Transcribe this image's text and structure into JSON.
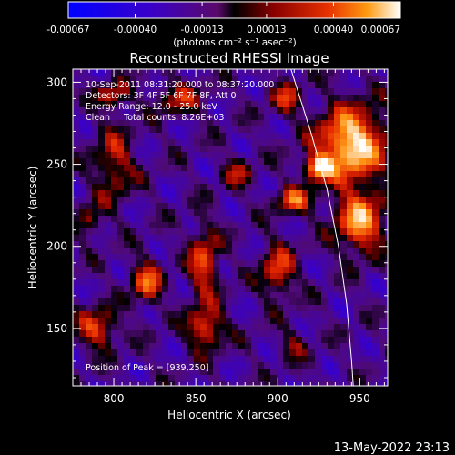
{
  "chart_data": {
    "type": "heatmap",
    "title": "Reconstructed RHESSI Image",
    "xlabel": "Heliocentric X (arcsec)",
    "ylabel": "Heliocentric Y (arcsec)",
    "xlim": [
      775,
      967
    ],
    "ylim": [
      115,
      308
    ],
    "x_ticks": [
      800,
      850,
      900,
      950
    ],
    "y_ticks": [
      150,
      200,
      250,
      300
    ],
    "colorbar": {
      "unit_label": "(photons cm⁻² s⁻¹ asec⁻²)",
      "range": [
        -0.00067,
        0.00067
      ],
      "tick_values": [
        -0.00067,
        -0.0004,
        -0.00013,
        0.00013,
        0.0004,
        0.00067
      ],
      "tick_labels": [
        "-0.00067",
        "-0.00040",
        "-0.00013",
        "0.00013",
        "0.00040",
        "0.00067"
      ]
    },
    "annotations": [
      "10-Sep-2011 08:31:20.000 to 08:37:20.000",
      "Detectors: 3F 4F 5F 6F 7F 8F, Att 0",
      "Energy Range: 12.0 - 25.0 keV",
      "Clean     Total counts: 8.26E+03"
    ],
    "peak_label": "Position of Peak = [939,250]",
    "peak": {
      "x": 939,
      "y": 250
    },
    "limb_curve": [
      [
        908,
        308
      ],
      [
        920,
        270
      ],
      [
        930,
        235
      ],
      [
        937,
        200
      ],
      [
        942,
        165
      ],
      [
        945,
        130
      ],
      [
        946,
        115
      ]
    ],
    "sources": [
      {
        "x": 945,
        "y": 262,
        "sx": 20,
        "sy": 22,
        "amp": 1.0
      },
      {
        "x": 925,
        "y": 248,
        "sx": 8,
        "sy": 7,
        "amp": 0.9
      },
      {
        "x": 950,
        "y": 215,
        "sx": 14,
        "sy": 18,
        "amp": 0.8
      },
      {
        "x": 910,
        "y": 228,
        "sx": 11,
        "sy": 8,
        "amp": 0.6
      },
      {
        "x": 900,
        "y": 185,
        "sx": 10,
        "sy": 16,
        "amp": 0.55
      },
      {
        "x": 855,
        "y": 190,
        "sx": 9,
        "sy": 22,
        "amp": 0.55
      },
      {
        "x": 820,
        "y": 178,
        "sx": 9,
        "sy": 13,
        "amp": 0.6
      },
      {
        "x": 790,
        "y": 150,
        "sx": 12,
        "sy": 12,
        "amp": 0.55
      },
      {
        "x": 856,
        "y": 150,
        "sx": 11,
        "sy": 12,
        "amp": 0.6
      },
      {
        "x": 800,
        "y": 250,
        "sx": 12,
        "sy": 22,
        "amp": 0.45
      },
      {
        "x": 840,
        "y": 290,
        "sx": 14,
        "sy": 10,
        "amp": 0.4
      },
      {
        "x": 905,
        "y": 290,
        "sx": 9,
        "sy": 10,
        "amp": 0.45
      },
      {
        "x": 785,
        "y": 215,
        "sx": 8,
        "sy": 10,
        "amp": 0.35
      },
      {
        "x": 875,
        "y": 245,
        "sx": 9,
        "sy": 9,
        "amp": 0.35
      },
      {
        "x": 910,
        "y": 140,
        "sx": 9,
        "sy": 9,
        "amp": 0.3
      },
      {
        "x": 800,
        "y": 292,
        "sx": 10,
        "sy": 8,
        "amp": 0.45
      }
    ],
    "date_stamp": "13-May-2022 23:13"
  }
}
